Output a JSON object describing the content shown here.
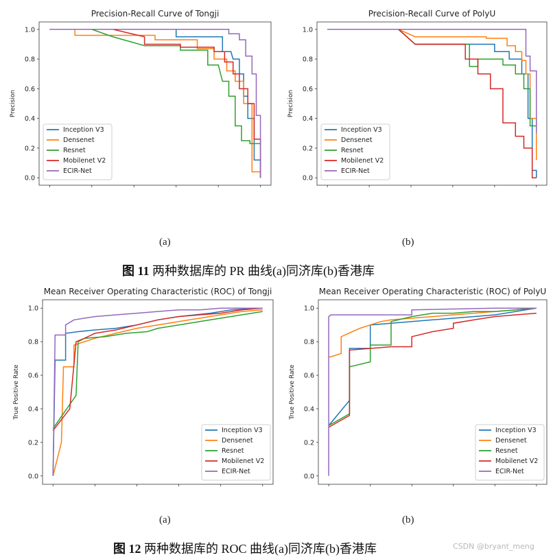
{
  "colors": {
    "inception": "#1f77b4",
    "densenet": "#ff7f0e",
    "resnet": "#2ca02c",
    "mobilenet": "#d62728",
    "ecir": "#9467bd"
  },
  "figures": {
    "fig11": {
      "caption_label": "图 11",
      "caption_text": "两种数据库的 PR 曲线(a)同济库(b)香港库",
      "sub_a": "(a)",
      "sub_b": "(b)"
    },
    "fig12": {
      "caption_label": "图 12",
      "caption_text": "两种数据库的 ROC 曲线(a)同济库(b)香港库",
      "sub_a": "(a)",
      "sub_b": "(b)"
    }
  },
  "watermark": "CSDN @bryant_meng",
  "chart_data": [
    {
      "type": "line",
      "title": "Precision-Recall Curve of Tongji",
      "xlabel": "",
      "ylabel": "Precision",
      "ylim": [
        0.0,
        1.0
      ],
      "yticks": [
        "0.0",
        "0.2",
        "0.4",
        "0.6",
        "0.8",
        "1.0"
      ],
      "legend": "lower-left",
      "series": [
        {
          "name": "Inception V3",
          "key": "inception",
          "x": [
            0,
            0.6,
            0.6,
            0.82,
            0.82,
            0.86,
            0.87,
            0.9,
            0.9,
            0.92,
            0.92,
            0.94,
            0.94,
            0.97,
            0.97,
            1.0,
            1.0
          ],
          "y": [
            1,
            1,
            0.95,
            0.95,
            0.85,
            0.85,
            0.8,
            0.8,
            0.7,
            0.7,
            0.55,
            0.55,
            0.4,
            0.4,
            0.12,
            0.12,
            0.0
          ]
        },
        {
          "name": "Densenet",
          "key": "densenet",
          "x": [
            0,
            0.12,
            0.12,
            0.5,
            0.5,
            0.7,
            0.7,
            0.78,
            0.78,
            0.84,
            0.84,
            0.88,
            0.88,
            0.92,
            0.92,
            0.96,
            0.96,
            1.0,
            1.0
          ],
          "y": [
            1,
            1,
            0.96,
            0.96,
            0.93,
            0.93,
            0.87,
            0.87,
            0.8,
            0.8,
            0.72,
            0.72,
            0.65,
            0.65,
            0.5,
            0.5,
            0.04,
            0.04,
            0.0
          ]
        },
        {
          "name": "Resnet",
          "key": "resnet",
          "x": [
            0,
            0.2,
            0.3,
            0.45,
            0.45,
            0.62,
            0.62,
            0.75,
            0.75,
            0.8,
            0.82,
            0.85,
            0.85,
            0.88,
            0.88,
            0.91,
            0.91,
            0.95,
            0.95,
            1.0
          ],
          "y": [
            1,
            1,
            0.95,
            0.89,
            0.89,
            0.89,
            0.86,
            0.86,
            0.76,
            0.76,
            0.65,
            0.65,
            0.55,
            0.55,
            0.35,
            0.35,
            0.25,
            0.25,
            0.23,
            0.23
          ]
        },
        {
          "name": "Mobilenet V2",
          "key": "mobilenet",
          "x": [
            0,
            0.3,
            0.45,
            0.45,
            0.62,
            0.62,
            0.78,
            0.78,
            0.83,
            0.83,
            0.87,
            0.87,
            0.9,
            0.9,
            0.94,
            0.94,
            0.97,
            0.97,
            1.0,
            1.0
          ],
          "y": [
            1,
            1,
            0.95,
            0.9,
            0.9,
            0.88,
            0.88,
            0.85,
            0.85,
            0.78,
            0.78,
            0.7,
            0.7,
            0.6,
            0.6,
            0.5,
            0.5,
            0.26,
            0.26,
            0.0
          ]
        },
        {
          "name": "ECIR-Net",
          "key": "ecir",
          "x": [
            0,
            0.85,
            0.85,
            0.9,
            0.9,
            0.93,
            0.93,
            0.96,
            0.96,
            0.98,
            0.98,
            1.0,
            1.0
          ],
          "y": [
            1,
            1,
            0.97,
            0.97,
            0.93,
            0.93,
            0.82,
            0.82,
            0.7,
            0.7,
            0.42,
            0.42,
            0.0
          ]
        }
      ]
    },
    {
      "type": "line",
      "title": "Precision-Recall Curve of PolyU",
      "xlabel": "",
      "ylabel": "Precision",
      "ylim": [
        0.0,
        1.0
      ],
      "yticks": [
        "0.0",
        "0.2",
        "0.4",
        "0.6",
        "0.8",
        "1.0"
      ],
      "legend": "lower-left",
      "series": [
        {
          "name": "Inception V3",
          "key": "inception",
          "x": [
            0,
            0.34,
            0.42,
            0.8,
            0.8,
            0.87,
            0.87,
            0.93,
            0.93,
            0.96,
            0.96,
            0.98,
            0.98,
            1.0,
            1.0
          ],
          "y": [
            1,
            1,
            0.9,
            0.9,
            0.85,
            0.85,
            0.8,
            0.8,
            0.7,
            0.7,
            0.4,
            0.4,
            0.05,
            0.05,
            0.0
          ]
        },
        {
          "name": "Densenet",
          "key": "densenet",
          "x": [
            0,
            0.34,
            0.42,
            0.76,
            0.76,
            0.86,
            0.86,
            0.9,
            0.9,
            0.93,
            0.93,
            0.95,
            0.95,
            0.97,
            0.97,
            1.0,
            1.0
          ],
          "y": [
            1,
            1,
            0.95,
            0.95,
            0.94,
            0.94,
            0.89,
            0.89,
            0.85,
            0.85,
            0.79,
            0.79,
            0.7,
            0.7,
            0.4,
            0.4,
            0.12
          ]
        },
        {
          "name": "Resnet",
          "key": "resnet",
          "x": [
            0,
            0.34,
            0.38,
            0.42,
            0.68,
            0.68,
            0.72,
            0.72,
            0.76,
            0.76,
            0.84,
            0.84,
            0.9,
            0.9,
            0.94,
            0.94,
            0.97,
            0.97,
            1.0,
            1.0
          ],
          "y": [
            1,
            1,
            0.95,
            0.9,
            0.9,
            0.75,
            0.75,
            0.8,
            0.8,
            0.8,
            0.8,
            0.76,
            0.76,
            0.7,
            0.7,
            0.6,
            0.6,
            0.35,
            0.35,
            0.4
          ]
        },
        {
          "name": "Mobilenet V2",
          "key": "mobilenet",
          "x": [
            0,
            0.34,
            0.42,
            0.66,
            0.66,
            0.72,
            0.72,
            0.78,
            0.78,
            0.84,
            0.84,
            0.9,
            0.9,
            0.94,
            0.94,
            0.98,
            0.98,
            1.0
          ],
          "y": [
            1,
            1,
            0.9,
            0.9,
            0.8,
            0.8,
            0.7,
            0.7,
            0.6,
            0.6,
            0.37,
            0.37,
            0.28,
            0.28,
            0.2,
            0.2,
            0.0,
            0.0
          ]
        },
        {
          "name": "ECIR-Net",
          "key": "ecir",
          "x": [
            0,
            0.95,
            0.95,
            0.97,
            0.97,
            1.0,
            1.0
          ],
          "y": [
            1,
            1,
            0.82,
            0.82,
            0.72,
            0.72,
            0.3
          ]
        }
      ]
    },
    {
      "type": "line",
      "title": "Mean Receiver Operating Characteristic (ROC) of Tongji",
      "xlabel": "",
      "ylabel": "True Positive Rate",
      "ylim": [
        0.0,
        1.0
      ],
      "yticks": [
        "0.0",
        "0.2",
        "0.4",
        "0.6",
        "0.8",
        "1.0"
      ],
      "legend": "lower-right",
      "series": [
        {
          "name": "Inception V3",
          "key": "inception",
          "x": [
            0,
            0.01,
            0.01,
            0.06,
            0.06,
            0.12,
            0.2,
            0.3,
            0.4,
            0.5,
            0.6,
            0.75,
            0.85,
            1.0
          ],
          "y": [
            0,
            0.69,
            0.69,
            0.69,
            0.85,
            0.86,
            0.87,
            0.88,
            0.9,
            0.93,
            0.95,
            0.97,
            0.99,
            1.0
          ]
        },
        {
          "name": "Densenet",
          "key": "densenet",
          "x": [
            0,
            0.04,
            0.05,
            0.1,
            0.1,
            0.15,
            0.2,
            0.3,
            0.4,
            0.5,
            0.6,
            0.7,
            0.8,
            0.9,
            1.0
          ],
          "y": [
            0,
            0.2,
            0.65,
            0.65,
            0.78,
            0.8,
            0.82,
            0.85,
            0.88,
            0.9,
            0.92,
            0.94,
            0.96,
            0.98,
            0.99
          ]
        },
        {
          "name": "Resnet",
          "key": "resnet",
          "x": [
            0,
            0.01,
            0.11,
            0.12,
            0.15,
            0.25,
            0.35,
            0.45,
            0.5,
            0.6,
            0.7,
            0.8,
            0.9,
            1.0
          ],
          "y": [
            0.28,
            0.3,
            0.48,
            0.8,
            0.82,
            0.83,
            0.85,
            0.86,
            0.88,
            0.9,
            0.92,
            0.94,
            0.96,
            0.98
          ]
        },
        {
          "name": "Mobilenet V2",
          "key": "mobilenet",
          "x": [
            0,
            0.08,
            0.11,
            0.15,
            0.2,
            0.3,
            0.4,
            0.5,
            0.6,
            0.7,
            0.8,
            0.9,
            1.0
          ],
          "y": [
            0.27,
            0.4,
            0.8,
            0.82,
            0.85,
            0.87,
            0.9,
            0.93,
            0.95,
            0.96,
            0.97,
            0.99,
            1.0
          ]
        },
        {
          "name": "ECIR-Net",
          "key": "ecir",
          "x": [
            0,
            0.01,
            0.01,
            0.06,
            0.06,
            0.1,
            0.15,
            0.2,
            0.3,
            0.4,
            0.5,
            0.6,
            0.7,
            0.8,
            0.9,
            1.0
          ],
          "y": [
            0,
            0.84,
            0.84,
            0.84,
            0.9,
            0.93,
            0.94,
            0.95,
            0.96,
            0.97,
            0.98,
            0.99,
            0.99,
            1.0,
            1.0,
            1.0
          ]
        }
      ]
    },
    {
      "type": "line",
      "title": "Mean Receiver Operating Characteristic (ROC) of PolyU",
      "xlabel": "",
      "ylabel": "True Positive Rate",
      "ylim": [
        0.0,
        1.0
      ],
      "yticks": [
        "0.0",
        "0.2",
        "0.4",
        "0.6",
        "0.8",
        "1.0"
      ],
      "legend": "lower-right",
      "series": [
        {
          "name": "Inception V3",
          "key": "inception",
          "x": [
            0,
            0.1,
            0.1,
            0.2,
            0.2,
            0.3,
            0.4,
            0.5,
            0.6,
            0.7,
            0.8,
            0.9,
            1.0
          ],
          "y": [
            0.3,
            0.45,
            0.76,
            0.76,
            0.9,
            0.91,
            0.92,
            0.93,
            0.94,
            0.95,
            0.96,
            0.98,
            1.0
          ]
        },
        {
          "name": "Densenet",
          "key": "densenet",
          "x": [
            0,
            0.01,
            0.06,
            0.06,
            0.15,
            0.2,
            0.25,
            0.3,
            0.4,
            0.5,
            0.6,
            0.7,
            0.8,
            0.9,
            1.0
          ],
          "y": [
            0.71,
            0.71,
            0.73,
            0.83,
            0.88,
            0.9,
            0.92,
            0.93,
            0.94,
            0.95,
            0.96,
            0.97,
            0.98,
            0.99,
            1.0
          ]
        },
        {
          "name": "Resnet",
          "key": "resnet",
          "x": [
            0,
            0.1,
            0.1,
            0.2,
            0.2,
            0.3,
            0.3,
            0.4,
            0.5,
            0.6,
            0.7,
            0.8,
            0.9,
            1.0
          ],
          "y": [
            0.3,
            0.37,
            0.65,
            0.68,
            0.78,
            0.78,
            0.92,
            0.95,
            0.97,
            0.97,
            0.98,
            0.98,
            0.99,
            1.0
          ]
        },
        {
          "name": "Mobilenet V2",
          "key": "mobilenet",
          "x": [
            0,
            0.1,
            0.1,
            0.3,
            0.4,
            0.4,
            0.5,
            0.6,
            0.6,
            0.7,
            0.8,
            0.9,
            1.0
          ],
          "y": [
            0.29,
            0.36,
            0.75,
            0.77,
            0.77,
            0.83,
            0.86,
            0.88,
            0.91,
            0.93,
            0.95,
            0.96,
            0.97
          ]
        },
        {
          "name": "ECIR-Net",
          "key": "ecir",
          "x": [
            0,
            0.0,
            0.01,
            0.05,
            0.05,
            0.4,
            0.4,
            0.8,
            1.0
          ],
          "y": [
            0,
            0.95,
            0.96,
            0.96,
            0.96,
            0.96,
            0.99,
            1.0,
            1.0
          ]
        }
      ]
    }
  ]
}
